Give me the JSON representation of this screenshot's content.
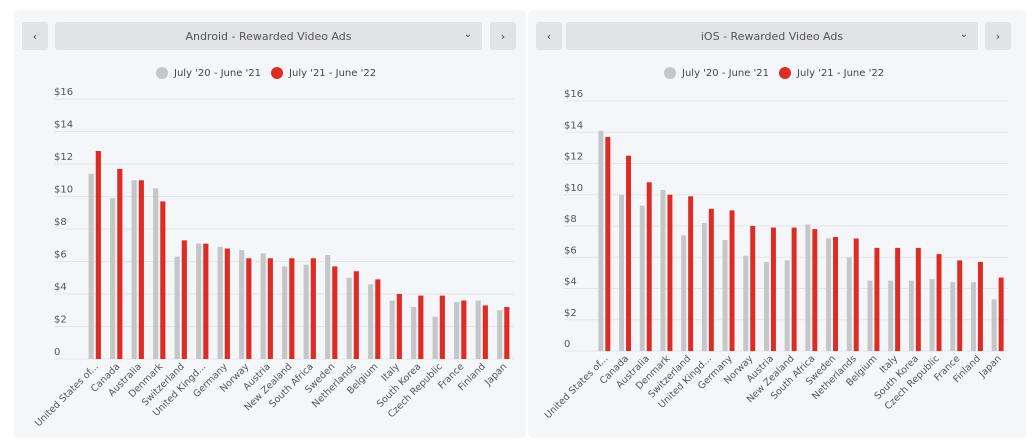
{
  "colors": {
    "series_prev": "#c4c6c8",
    "series_curr": "#de2b24",
    "grid": "#e4e5ea"
  },
  "panels": [
    {
      "dropdown_label": "Android - Rewarded Video Ads",
      "prev_icon": "chevron-left-icon",
      "next_icon": "chevron-right-icon",
      "dropdown_icon": "chevron-down-icon"
    },
    {
      "dropdown_label": "iOS - Rewarded Video Ads",
      "prev_icon": "chevron-left-icon",
      "next_icon": "chevron-right-icon",
      "dropdown_icon": "chevron-down-icon"
    }
  ],
  "chart_data": [
    {
      "type": "bar",
      "y_ticks": [
        "0",
        "$2",
        "$4",
        "$6",
        "$8",
        "$10",
        "$12",
        "$14",
        "$16"
      ],
      "ylim": [
        0,
        16
      ],
      "grid": true,
      "legend_position": "top-center",
      "categories": [
        "United States of...",
        "Canada",
        "Australia",
        "Denmark",
        "Switzerland",
        "United Kingd...",
        "Germany",
        "Norway",
        "Austria",
        "New Zealand",
        "South Africa",
        "Sweden",
        "Netherlands",
        "Belgium",
        "Italy",
        "South Korea",
        "Czech Republic",
        "France",
        "Finland",
        "Japan"
      ],
      "series": [
        {
          "name": "July '20 - June '21",
          "values": [
            11.4,
            9.9,
            11.0,
            10.5,
            6.3,
            7.1,
            6.9,
            6.7,
            6.5,
            5.7,
            5.8,
            6.4,
            5.0,
            4.6,
            3.6,
            3.2,
            2.6,
            3.5,
            3.6,
            3.0
          ]
        },
        {
          "name": "July '21 - June '22",
          "values": [
            12.8,
            11.7,
            11.0,
            9.7,
            7.3,
            7.1,
            6.8,
            6.2,
            6.2,
            6.2,
            6.2,
            5.7,
            5.4,
            4.9,
            4.0,
            3.9,
            3.9,
            3.6,
            3.3,
            3.2
          ]
        }
      ]
    },
    {
      "type": "bar",
      "y_ticks": [
        "0",
        "$2",
        "$4",
        "$6",
        "$8",
        "$10",
        "$12",
        "$14",
        "$16"
      ],
      "ylim": [
        0,
        16
      ],
      "grid": true,
      "legend_position": "top-center",
      "categories": [
        "United States of...",
        "Canada",
        "Australia",
        "Denmark",
        "Switzerland",
        "United Kingd...",
        "Germany",
        "Norway",
        "Austria",
        "New Zealand",
        "South Africa",
        "Sweden",
        "Netherlands",
        "Belgium",
        "Italy",
        "South Korea",
        "Czech Republic",
        "France",
        "Finland",
        "Japan"
      ],
      "series": [
        {
          "name": "July '20 - June '21",
          "values": [
            14.1,
            10.0,
            9.3,
            10.3,
            7.4,
            8.2,
            7.1,
            6.1,
            5.7,
            5.8,
            8.1,
            7.2,
            6.0,
            4.5,
            4.5,
            4.5,
            4.6,
            4.4,
            4.4,
            3.3
          ]
        },
        {
          "name": "July '21 - June '22",
          "values": [
            13.7,
            12.5,
            10.8,
            10.0,
            9.9,
            9.1,
            9.0,
            8.0,
            7.9,
            7.9,
            7.8,
            7.3,
            7.2,
            6.6,
            6.6,
            6.6,
            6.2,
            5.8,
            5.7,
            4.7
          ]
        }
      ]
    }
  ]
}
